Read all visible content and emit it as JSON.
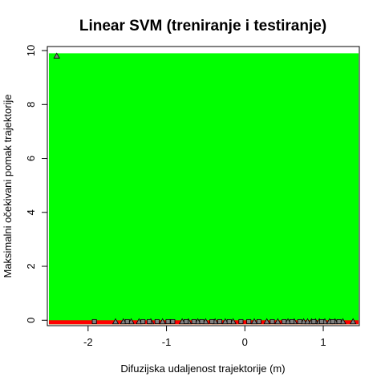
{
  "chart_data": {
    "type": "scatter",
    "title": "Linear SVM (treniranje i testiranje)",
    "xlabel": "Difuzijska udaljenost trajektorije (m)",
    "ylabel": "Maksimalni očekivani pomak trajektorije",
    "xlim": [
      -2.52,
      1.46
    ],
    "ylim": [
      -0.2,
      10.15
    ],
    "x_ticks": [
      -2,
      -1,
      0,
      1
    ],
    "y_ticks": [
      0,
      2,
      4,
      6,
      8,
      10
    ],
    "regions": [
      {
        "class": "green",
        "color": "#00ff00",
        "x": [
          -2.5,
          1.45
        ],
        "y": [
          -0.15,
          9.9
        ]
      },
      {
        "class": "red",
        "color": "#ff0000",
        "x": [
          -2.5,
          1.45
        ],
        "y": [
          -0.15,
          0.0
        ]
      }
    ],
    "series": [
      {
        "marker": "triangle",
        "points": [
          {
            "x": -2.4,
            "y": 9.8
          },
          {
            "x": -1.65,
            "y": -0.05
          },
          {
            "x": -1.55,
            "y": -0.05
          },
          {
            "x": -1.45,
            "y": -0.05
          },
          {
            "x": -1.35,
            "y": -0.05
          },
          {
            "x": -1.2,
            "y": -0.05
          },
          {
            "x": -1.05,
            "y": -0.05
          },
          {
            "x": -0.8,
            "y": -0.05
          },
          {
            "x": -0.72,
            "y": -0.05
          },
          {
            "x": -0.6,
            "y": -0.05
          },
          {
            "x": -0.5,
            "y": -0.05
          },
          {
            "x": -0.38,
            "y": -0.05
          },
          {
            "x": -0.25,
            "y": -0.05
          },
          {
            "x": -0.15,
            "y": -0.05
          },
          {
            "x": 0.12,
            "y": -0.05
          },
          {
            "x": 0.28,
            "y": -0.05
          },
          {
            "x": 0.42,
            "y": -0.05
          },
          {
            "x": 0.55,
            "y": -0.05
          },
          {
            "x": 0.63,
            "y": -0.05
          },
          {
            "x": 0.75,
            "y": -0.05
          },
          {
            "x": 0.8,
            "y": -0.05
          },
          {
            "x": 0.85,
            "y": -0.05
          },
          {
            "x": 0.9,
            "y": -0.05
          },
          {
            "x": 0.95,
            "y": -0.05
          },
          {
            "x": 1.02,
            "y": -0.05
          },
          {
            "x": 1.08,
            "y": -0.05
          },
          {
            "x": 1.15,
            "y": -0.05
          },
          {
            "x": 1.25,
            "y": -0.05
          },
          {
            "x": 1.38,
            "y": -0.05
          }
        ]
      },
      {
        "marker": "square",
        "points": [
          {
            "x": -1.92,
            "y": -0.05
          },
          {
            "x": -1.5,
            "y": -0.05
          },
          {
            "x": -1.3,
            "y": -0.05
          },
          {
            "x": -1.22,
            "y": -0.05
          },
          {
            "x": -1.12,
            "y": -0.05
          },
          {
            "x": -0.98,
            "y": -0.05
          },
          {
            "x": -0.92,
            "y": -0.05
          },
          {
            "x": -0.75,
            "y": -0.05
          },
          {
            "x": -0.65,
            "y": -0.05
          },
          {
            "x": -0.55,
            "y": -0.05
          },
          {
            "x": -0.42,
            "y": -0.05
          },
          {
            "x": -0.32,
            "y": -0.05
          },
          {
            "x": -0.2,
            "y": -0.05
          },
          {
            "x": -0.05,
            "y": -0.05
          },
          {
            "x": 0.05,
            "y": -0.05
          },
          {
            "x": 0.18,
            "y": -0.05
          },
          {
            "x": 0.35,
            "y": -0.05
          },
          {
            "x": 0.5,
            "y": -0.05
          },
          {
            "x": 0.6,
            "y": -0.05
          },
          {
            "x": 0.7,
            "y": -0.05
          },
          {
            "x": 0.88,
            "y": -0.05
          },
          {
            "x": 0.98,
            "y": -0.05
          },
          {
            "x": 1.12,
            "y": -0.05
          },
          {
            "x": 1.2,
            "y": -0.05
          }
        ]
      }
    ]
  }
}
